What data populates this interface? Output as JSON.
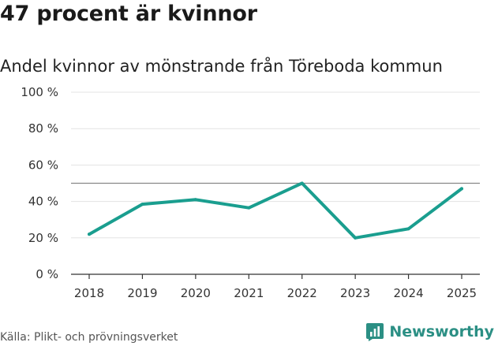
{
  "header": {
    "title": "47 procent är kvinnor",
    "subtitle": "Andel kvinnor av mönstrande från Töreboda kommun"
  },
  "footer": {
    "source": "Källa: Plikt- och prövningsverket",
    "brand": "Newsworthy"
  },
  "colors": {
    "line": "#1a9e8f",
    "grid": "#e3e3e3",
    "reference": "#888888",
    "brand": "#2b8f84"
  },
  "chart_data": {
    "type": "line",
    "title": "47 procent är kvinnor",
    "subtitle": "Andel kvinnor av mönstrande från Töreboda kommun",
    "xlabel": "",
    "ylabel": "",
    "x": [
      "2018",
      "2019",
      "2020",
      "2021",
      "2022",
      "2023",
      "2024",
      "2025"
    ],
    "series": [
      {
        "name": "Andel kvinnor",
        "values": [
          22,
          38.5,
          41,
          36.5,
          50,
          20,
          25,
          47
        ]
      }
    ],
    "ylim": [
      0,
      100
    ],
    "yticks": [
      0,
      20,
      40,
      60,
      80,
      100
    ],
    "ytick_labels": [
      "0 %",
      "20 %",
      "40 %",
      "60 %",
      "80 %",
      "100 %"
    ],
    "reference_line": 50,
    "grid": true
  }
}
